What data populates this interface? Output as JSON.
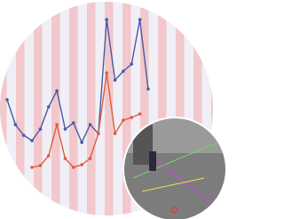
{
  "chart_data": {
    "type": "line",
    "categories": [
      null,
      null,
      null,
      null,
      null,
      null,
      null,
      null,
      null,
      null,
      null,
      null,
      null,
      null,
      null,
      null,
      null,
      null
    ],
    "series": [
      {
        "color": "#4a58a6",
        "values": [
          44,
          30,
          24,
          21,
          27.5,
          40,
          49,
          27.5,
          31,
          20,
          30,
          25,
          89,
          55,
          60,
          64,
          89,
          50
        ]
      },
      {
        "color": "#e05a3c",
        "values": [
          null,
          null,
          null,
          6,
          7,
          12.5,
          30,
          11,
          6,
          7.5,
          11,
          25,
          59,
          25,
          32.5,
          34,
          36,
          null
        ]
      }
    ],
    "ylim": [
      0,
      100
    ]
  }
}
